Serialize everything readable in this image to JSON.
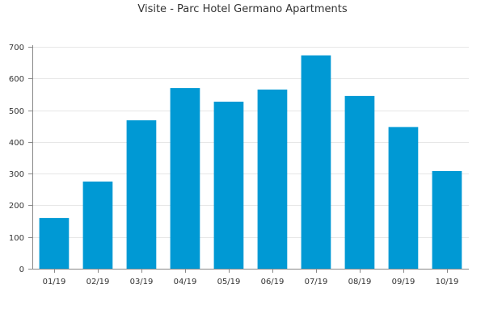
{
  "chart_data": {
    "type": "bar",
    "title": "Visite - Parc Hotel Germano Apartments",
    "xlabel": "",
    "ylabel": "",
    "categories": [
      "01/19",
      "02/19",
      "03/19",
      "04/19",
      "05/19",
      "06/19",
      "07/19",
      "08/19",
      "09/19",
      "10/19"
    ],
    "values": [
      160,
      275,
      468,
      570,
      527,
      565,
      673,
      545,
      447,
      308
    ],
    "ylim": [
      0,
      700
    ],
    "yticks": [
      0,
      100,
      200,
      300,
      400,
      500,
      600,
      700
    ],
    "grid": true,
    "legend": "none",
    "colors": {
      "bar": "#0099d4",
      "grid": "#e6e6e6",
      "axis": "#888888",
      "text": "#333333"
    }
  }
}
